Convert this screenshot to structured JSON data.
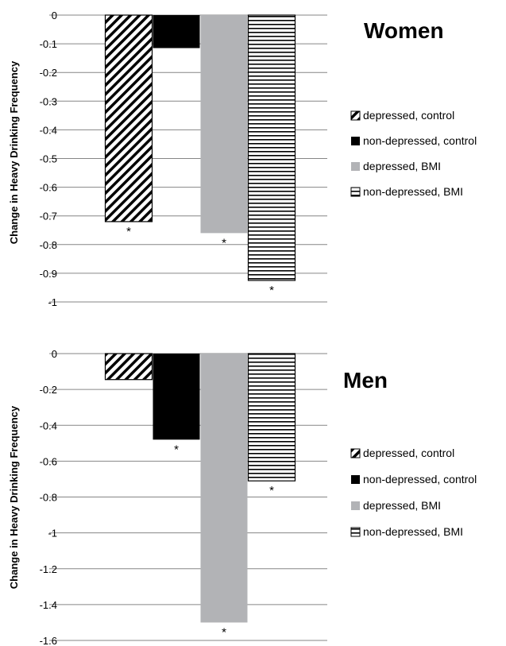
{
  "chart_data": [
    {
      "type": "bar",
      "title": "Women",
      "ylabel": "Change in Heavy Drinking Frequency",
      "ylim": [
        -1,
        0
      ],
      "yticks": [
        0,
        -0.1,
        -0.2,
        -0.3,
        -0.4,
        -0.5,
        -0.6,
        -0.7,
        -0.8,
        -0.9,
        -1
      ],
      "yticklabels": [
        "0",
        "-0.1",
        "-0.2",
        "-0.3",
        "-0.4",
        "-0.5",
        "-0.6",
        "-0.7",
        "-0.8",
        "-0.9",
        "-1"
      ],
      "grid": true,
      "legend_position": "right",
      "series": [
        {
          "name": "depressed, control",
          "value": -0.72,
          "pattern": "diagonal-hatch",
          "significant": true,
          "annotation": "*"
        },
        {
          "name": "non-depressed, control",
          "value": -0.115,
          "pattern": "solid-black",
          "significant": false,
          "annotation": ""
        },
        {
          "name": "depressed, BMI",
          "value": -0.76,
          "pattern": "solid-gray",
          "significant": true,
          "annotation": "*"
        },
        {
          "name": "non-depressed, BMI",
          "value": -0.925,
          "pattern": "horizontal-lines",
          "significant": true,
          "annotation": "*"
        }
      ]
    },
    {
      "type": "bar",
      "title": "Men",
      "ylabel": "Change in Heavy Drinking Frequency",
      "ylim": [
        -1.6,
        0
      ],
      "yticks": [
        0,
        -0.2,
        -0.4,
        -0.6,
        -0.8,
        -1,
        -1.2,
        -1.4,
        -1.6
      ],
      "yticklabels": [
        "0",
        "-0.2",
        "-0.4",
        "-0.6",
        "-0.8",
        "-1",
        "-1.2",
        "-1.4",
        "-1.6"
      ],
      "grid": true,
      "legend_position": "right",
      "series": [
        {
          "name": "depressed, control",
          "value": -0.145,
          "pattern": "diagonal-hatch",
          "significant": false,
          "annotation": ""
        },
        {
          "name": "non-depressed, control",
          "value": -0.48,
          "pattern": "solid-black",
          "significant": true,
          "annotation": "*"
        },
        {
          "name": "depressed, BMI",
          "value": -1.5,
          "pattern": "solid-gray",
          "significant": true,
          "annotation": "*"
        },
        {
          "name": "non-depressed, BMI",
          "value": -0.71,
          "pattern": "horizontal-lines",
          "significant": true,
          "annotation": "*"
        }
      ]
    }
  ],
  "colors": {
    "black": "#000000",
    "gray": "#b2b3b6",
    "grid": "#868686"
  }
}
